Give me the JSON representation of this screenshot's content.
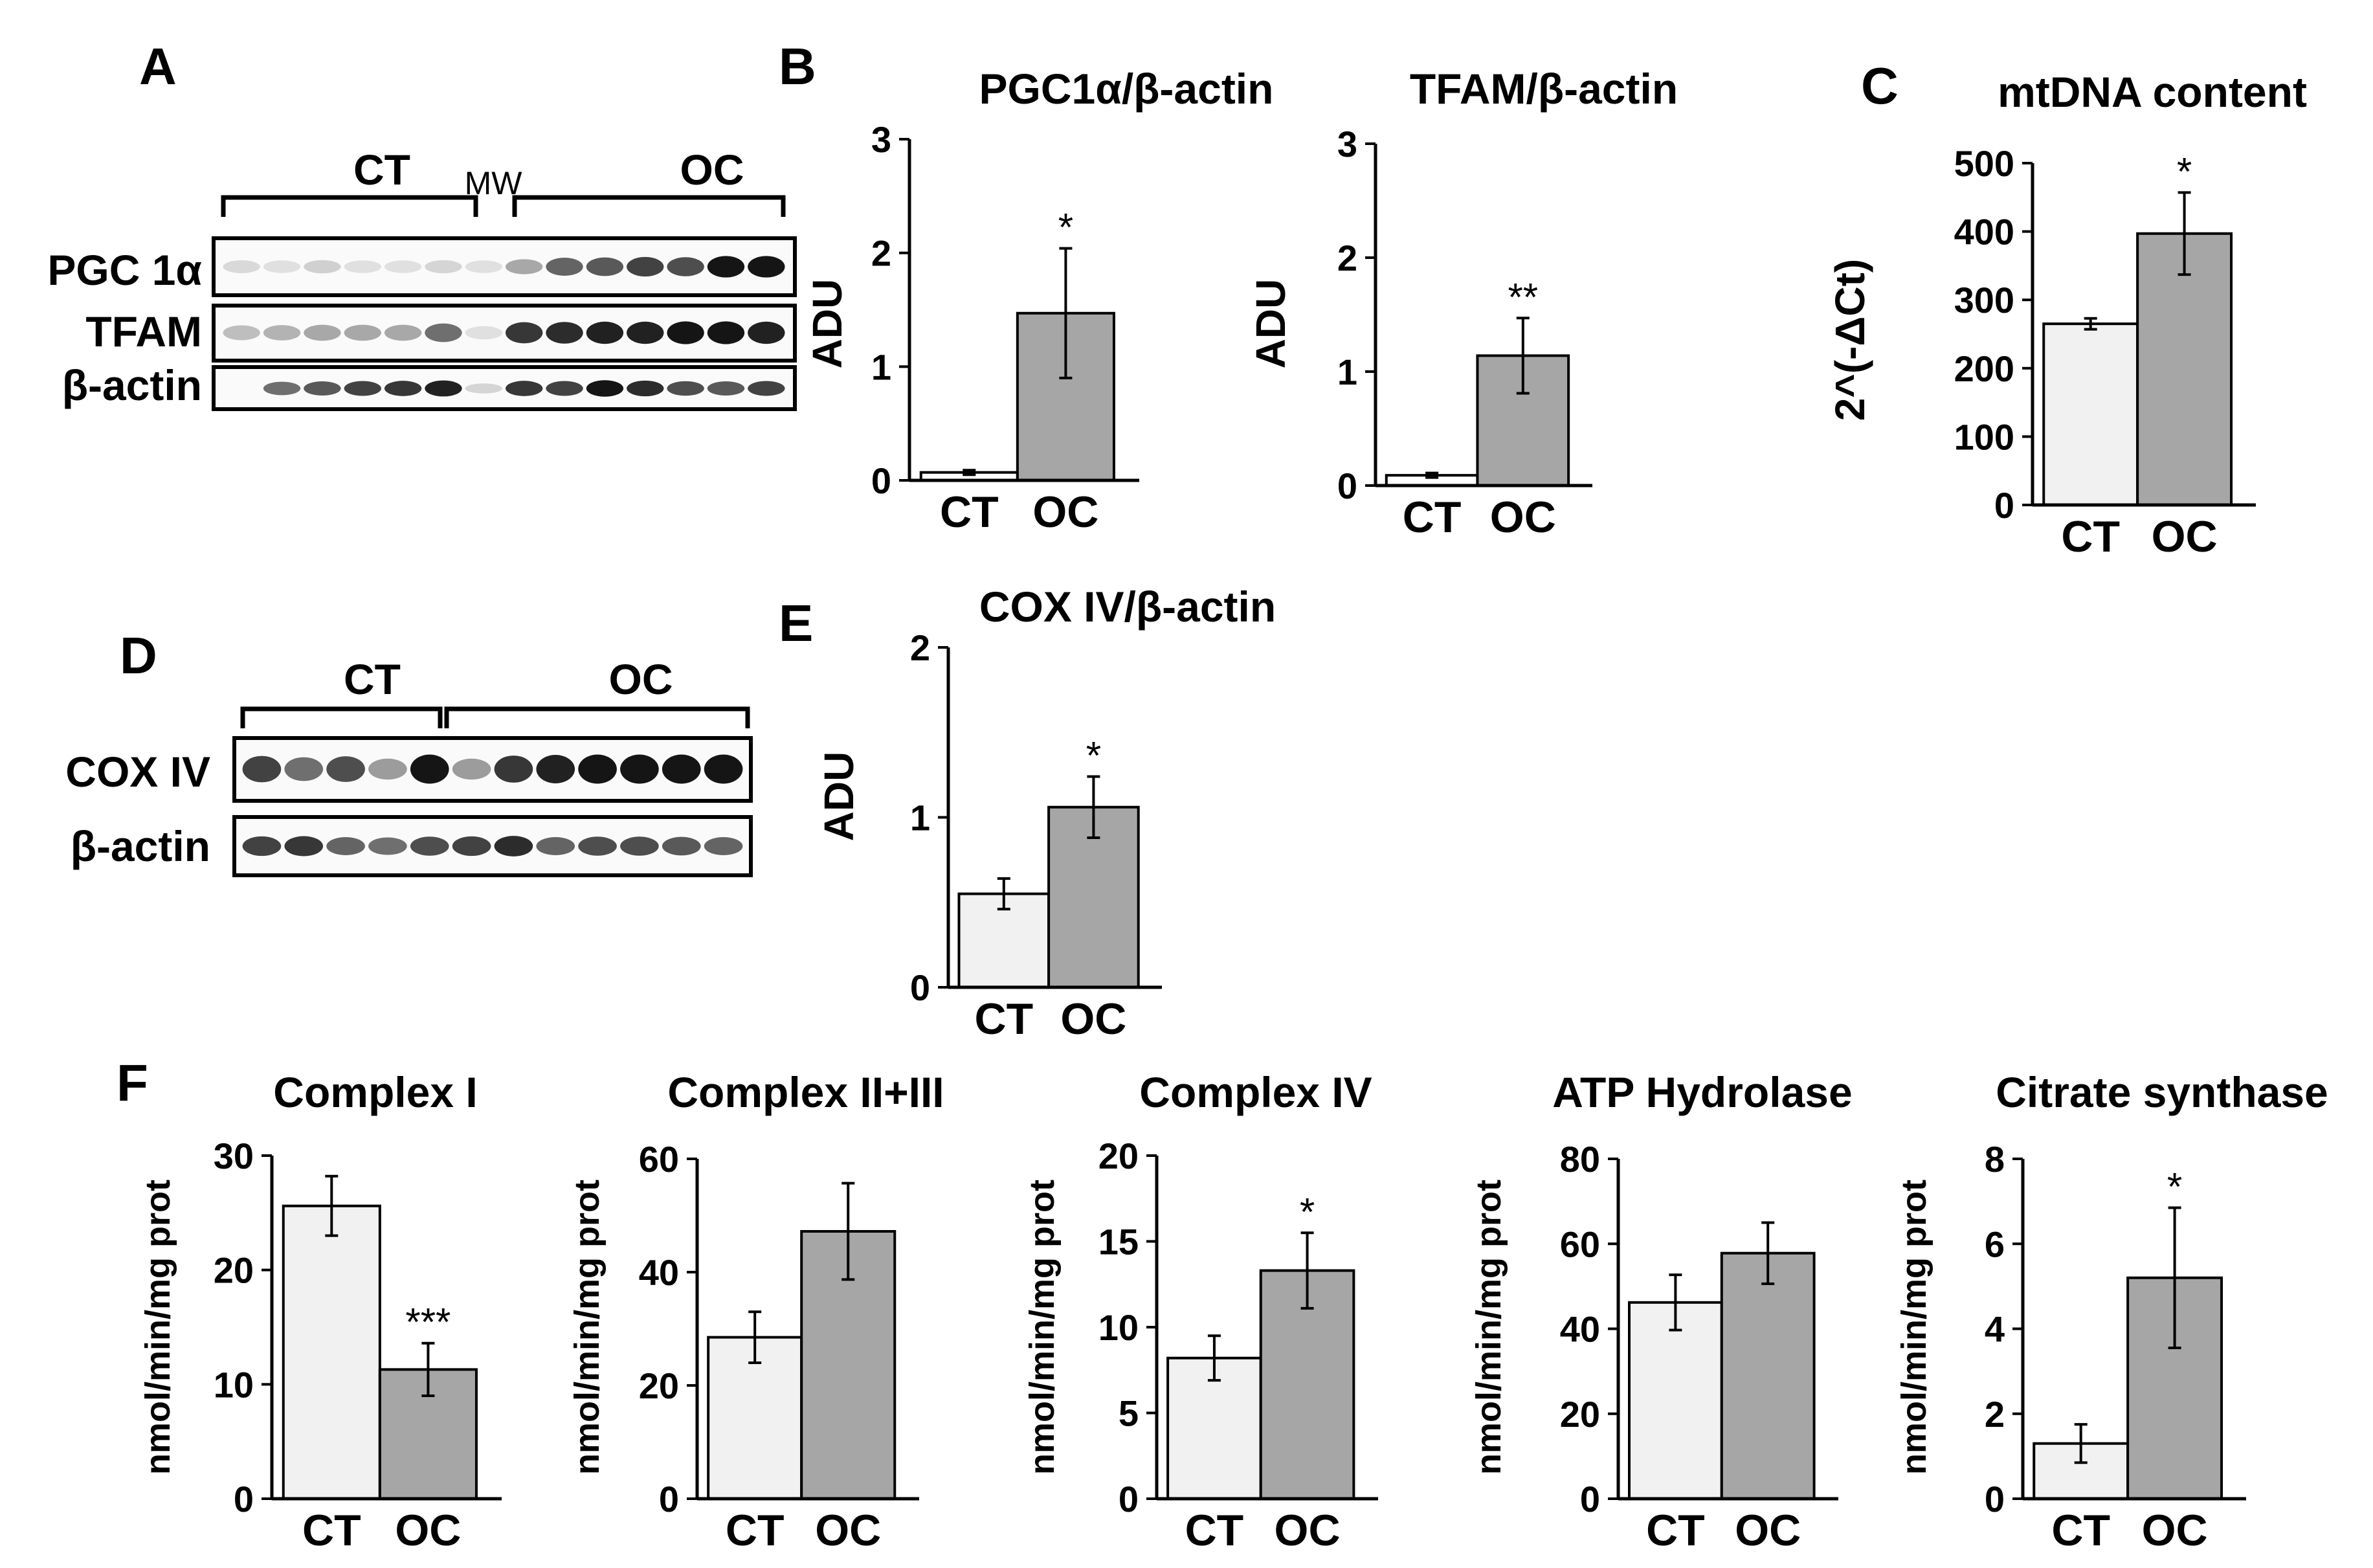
{
  "panel_labels": {
    "A": "A",
    "B": "B",
    "C": "C",
    "D": "D",
    "E": "E",
    "F": "F"
  },
  "colors": {
    "ct_bar": "#f1f1f1",
    "ct_bar_white": "#ffffff",
    "oc_bar": "#a6a6a6",
    "axis": "#000000"
  },
  "blots": {
    "A": {
      "groups": {
        "ct": "CT",
        "mw": "MW",
        "oc": "OC"
      },
      "rows": [
        {
          "label": "PGC 1α",
          "intensities": [
            0.08,
            0.05,
            0.12,
            0.05,
            0.05,
            0.1,
            0.05,
            0.3,
            0.6,
            0.65,
            0.75,
            0.7,
            0.95,
            0.95
          ]
        },
        {
          "label": "TFAM",
          "intensities": [
            0.2,
            0.25,
            0.3,
            0.3,
            0.3,
            0.55,
            0.05,
            0.8,
            0.85,
            0.9,
            0.9,
            0.95,
            0.95,
            0.9
          ]
        },
        {
          "label": "β-actin",
          "intensities": [
            0.0,
            0.55,
            0.65,
            0.75,
            0.8,
            0.9,
            0.1,
            0.8,
            0.75,
            0.95,
            0.85,
            0.7,
            0.65,
            0.75
          ]
        }
      ]
    },
    "D": {
      "groups": {
        "ct": "CT",
        "oc": "OC"
      },
      "rows": [
        {
          "label": "COX IV",
          "intensities": [
            0.75,
            0.55,
            0.7,
            0.35,
            0.95,
            0.35,
            0.8,
            0.9,
            0.95,
            0.95,
            0.95,
            0.95
          ]
        },
        {
          "label": "β-actin",
          "intensities": [
            0.75,
            0.8,
            0.6,
            0.55,
            0.7,
            0.75,
            0.85,
            0.6,
            0.7,
            0.7,
            0.65,
            0.6
          ]
        }
      ]
    }
  },
  "chart_data": [
    {
      "panel": "B",
      "type": "bar",
      "title": "PGC1α/β-actin",
      "ylabel": "ADU",
      "categories": [
        "CT",
        "OC"
      ],
      "values": [
        0.07,
        1.47
      ],
      "errors": [
        0.02,
        0.57
      ],
      "ylim": [
        0,
        3
      ],
      "yticks": [
        0,
        1,
        2,
        3
      ],
      "significance": [
        "",
        "*"
      ],
      "colors": [
        "#ffffff",
        "#a6a6a6"
      ]
    },
    {
      "panel": "B",
      "type": "bar",
      "title": "TFAM/β-actin",
      "ylabel": "ADU",
      "categories": [
        "CT",
        "OC"
      ],
      "values": [
        0.09,
        1.14
      ],
      "errors": [
        0.02,
        0.33
      ],
      "ylim": [
        0,
        3
      ],
      "yticks": [
        0,
        1,
        2,
        3
      ],
      "significance": [
        "",
        "**"
      ],
      "colors": [
        "#ffffff",
        "#a6a6a6"
      ]
    },
    {
      "panel": "C",
      "type": "bar",
      "title": "mtDNA content",
      "ylabel": "2^(-ΔCt)",
      "categories": [
        "CT",
        "OC"
      ],
      "values": [
        265,
        397
      ],
      "errors": [
        8,
        60
      ],
      "ylim": [
        0,
        500
      ],
      "yticks": [
        0,
        100,
        200,
        300,
        400,
        500
      ],
      "significance": [
        "",
        "*"
      ],
      "colors": [
        "#f1f1f1",
        "#a6a6a6"
      ]
    },
    {
      "panel": "E",
      "type": "bar",
      "title": "COX IV/β-actin",
      "ylabel": "ADU",
      "categories": [
        "CT",
        "OC"
      ],
      "values": [
        0.55,
        1.06
      ],
      "errors": [
        0.09,
        0.18
      ],
      "ylim": [
        0,
        2
      ],
      "yticks": [
        0,
        1,
        2
      ],
      "significance": [
        "",
        "*"
      ],
      "colors": [
        "#f1f1f1",
        "#a6a6a6"
      ]
    },
    {
      "panel": "F",
      "type": "bar",
      "title": "Complex I",
      "ylabel": "nmol/min/mg prot",
      "categories": [
        "CT",
        "OC"
      ],
      "values": [
        25.6,
        11.3
      ],
      "errors": [
        2.6,
        2.3
      ],
      "ylim": [
        0,
        30
      ],
      "yticks": [
        0,
        10,
        20,
        30
      ],
      "significance": [
        "",
        "***"
      ],
      "colors": [
        "#f1f1f1",
        "#a6a6a6"
      ]
    },
    {
      "panel": "F",
      "type": "bar",
      "title": "Complex II+III",
      "ylabel": "nmol/min/mg prot",
      "categories": [
        "CT",
        "OC"
      ],
      "values": [
        28.5,
        47.2
      ],
      "errors": [
        4.5,
        8.5
      ],
      "ylim": [
        0,
        60
      ],
      "yticks": [
        0,
        20,
        40,
        60
      ],
      "significance": [
        "",
        ""
      ],
      "colors": [
        "#f1f1f1",
        "#a6a6a6"
      ]
    },
    {
      "panel": "F",
      "type": "bar",
      "title": "Complex IV",
      "ylabel": "nmol/min/mg prot",
      "categories": [
        "CT",
        "OC"
      ],
      "values": [
        8.2,
        13.3
      ],
      "errors": [
        1.3,
        2.2
      ],
      "ylim": [
        0,
        20
      ],
      "yticks": [
        0,
        5,
        10,
        15,
        20
      ],
      "significance": [
        "",
        "*"
      ],
      "colors": [
        "#f1f1f1",
        "#a6a6a6"
      ]
    },
    {
      "panel": "F",
      "type": "bar",
      "title": "ATP Hydrolase",
      "ylabel": "nmol/min/mg prot",
      "categories": [
        "CT",
        "OC"
      ],
      "values": [
        46.2,
        57.8
      ],
      "errors": [
        6.5,
        7.2
      ],
      "ylim": [
        0,
        80
      ],
      "yticks": [
        0,
        20,
        40,
        60,
        80
      ],
      "significance": [
        "",
        ""
      ],
      "colors": [
        "#f1f1f1",
        "#a6a6a6"
      ]
    },
    {
      "panel": "F",
      "type": "bar",
      "title": "Citrate synthase",
      "ylabel": "nmol/min/mg prot",
      "categories": [
        "CT",
        "OC"
      ],
      "values": [
        1.3,
        5.2
      ],
      "errors": [
        0.45,
        1.65
      ],
      "ylim": [
        0,
        8
      ],
      "yticks": [
        0,
        2,
        4,
        6,
        8
      ],
      "significance": [
        "",
        "*"
      ],
      "colors": [
        "#f1f1f1",
        "#a6a6a6"
      ]
    }
  ]
}
